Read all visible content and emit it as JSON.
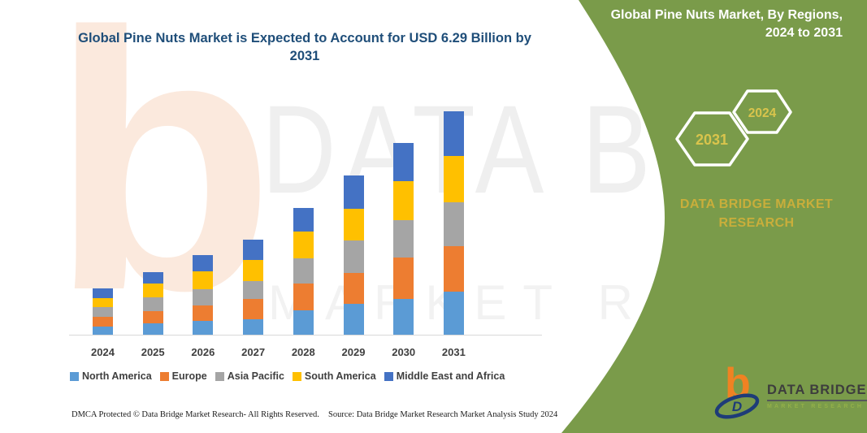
{
  "colors": {
    "panel_green": "#7A9B4A",
    "title_blue": "#1F4E79",
    "brand_gold": "#C9AE3B",
    "hexagon_year_gold": "#D9C44C",
    "axis_text": "#3F3F3F",
    "axis_line": "#D9D9D9",
    "logo_orange": "#F08222",
    "logo_navy": "#1E3C78"
  },
  "watermark": {
    "monogram": "b",
    "word1": "DATA BRIDGE",
    "word2": "MARKET RESEARCH"
  },
  "panel": {
    "title": "Global Pine Nuts Market, By Regions, 2024 to 2031",
    "hexagon_years": [
      "2031",
      "2024"
    ],
    "brand_text": "DATA BRIDGE MARKET RESEARCH"
  },
  "logo": {
    "monogram": "b",
    "swoosh_letter": "D",
    "name": "DATA BRIDGE",
    "subtext": "MARKET RESEARCH"
  },
  "footer": {
    "left": "DMCA Protected © Data Bridge Market Research-  All Rights Reserved.",
    "right": "Source: Data Bridge Market Research  Market Analysis Study 2024"
  },
  "chart_data": {
    "type": "bar",
    "stacked": true,
    "title": "Global Pine Nuts Market is Expected to Account for USD 6.29 Billion by 2031",
    "unit": "USD Billion",
    "categories": [
      "2024",
      "2025",
      "2026",
      "2027",
      "2028",
      "2029",
      "2030",
      "2031"
    ],
    "series": [
      {
        "name": "North America",
        "color": "#5B9BD5",
        "values": [
          0.25,
          0.34,
          0.41,
          0.46,
          0.7,
          0.89,
          1.02,
          1.23
        ]
      },
      {
        "name": "Europe",
        "color": "#ED7D31",
        "values": [
          0.27,
          0.34,
          0.44,
          0.57,
          0.75,
          0.87,
          1.16,
          1.27
        ]
      },
      {
        "name": "Asia Pacific",
        "color": "#A5A5A5",
        "values": [
          0.27,
          0.4,
          0.44,
          0.5,
          0.71,
          0.91,
          1.05,
          1.24
        ]
      },
      {
        "name": "South America",
        "color": "#FFC000",
        "values": [
          0.27,
          0.38,
          0.51,
          0.58,
          0.75,
          0.89,
          1.1,
          1.29
        ]
      },
      {
        "name": "Middle East and Africa",
        "color": "#4472C4",
        "values": [
          0.27,
          0.31,
          0.46,
          0.59,
          0.66,
          0.94,
          1.07,
          1.26
        ]
      }
    ],
    "totals_estimated": [
      1.33,
      1.77,
      2.26,
      2.7,
      3.57,
      4.5,
      5.4,
      6.29
    ],
    "xlabel": "",
    "ylabel": "",
    "ylim": [
      0,
      6.5
    ],
    "grid": false,
    "y_axis_shown": false,
    "legend_position": "bottom"
  }
}
